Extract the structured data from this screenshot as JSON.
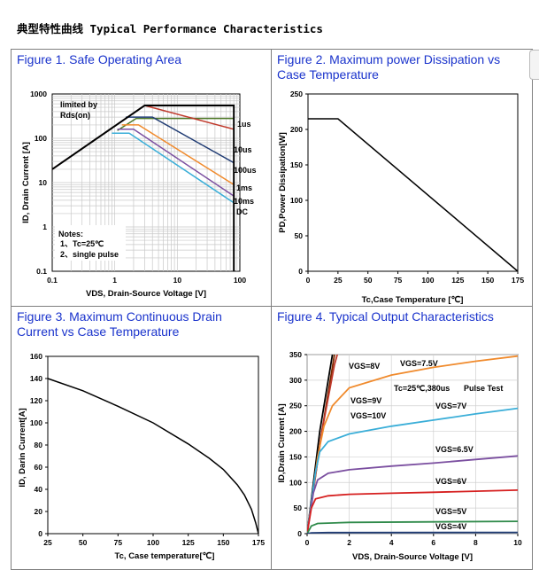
{
  "page": {
    "title": "典型特性曲线 Typical Performance Characteristics"
  },
  "figures": [
    {
      "title": "Figure 1. Safe Operating Area"
    },
    {
      "title": "Figure 2. Maximum power Dissipation vs Case Temperature"
    },
    {
      "title": "Figure 3. Maximum Continuous Drain Current vs Case Temperature"
    },
    {
      "title": "Figure 4. Typical Output Characteristics"
    }
  ],
  "chart_data": [
    {
      "type": "line",
      "title": "Figure 1. Safe Operating Area",
      "xlabel": "VDS, Drain-Source Voltage [V]",
      "ylabel": "ID, Drain Current [A]",
      "xlim": [
        0.1,
        100
      ],
      "ylim": [
        0.1,
        1000
      ],
      "x_scale": "log",
      "y_scale": "log",
      "xticks": [
        "0.1",
        "1",
        "10",
        "100"
      ],
      "yticks": [
        "0.1",
        "1",
        "10",
        "100",
        "1000"
      ],
      "annotations": [
        "limited by",
        "Rds(on)",
        "Notes:",
        "1、Tc=25℃",
        "2、single pulse"
      ],
      "series": [
        {
          "name": "1us",
          "color": "#4f7a28",
          "x": [
            1.1,
            2.2,
            2.3,
            80
          ],
          "y": [
            150,
            280,
            280,
            280
          ]
        },
        {
          "name": "10us",
          "color": "#c0392b",
          "x": [
            0.1,
            3,
            80
          ],
          "y": [
            20,
            550,
            160
          ]
        },
        {
          "name": "100us",
          "color": "#1f3b73",
          "x": [
            1.5,
            4,
            80
          ],
          "y": [
            300,
            300,
            28
          ]
        },
        {
          "name": "1ms",
          "color": "#f08a2c",
          "x": [
            1.3,
            2.4,
            80
          ],
          "y": [
            200,
            200,
            9
          ]
        },
        {
          "name": "10ms",
          "color": "#7b4fa0",
          "x": [
            1.1,
            2.0,
            80
          ],
          "y": [
            160,
            160,
            5
          ]
        },
        {
          "name": "DC",
          "color": "#3aaed8",
          "x": [
            0.9,
            1.7,
            80
          ],
          "y": [
            130,
            130,
            3.5
          ]
        },
        {
          "name": "SOA boundary",
          "color": "#000000",
          "x": [
            0.1,
            3,
            3,
            80,
            80
          ],
          "y": [
            20,
            550,
            550,
            550,
            0.1
          ]
        }
      ]
    },
    {
      "type": "line",
      "title": "Figure 2. Maximum power Dissipation vs Case Temperature",
      "xlabel": "Tc,Case Temperature [℃]",
      "ylabel": "PD,Power Dissipation[W]",
      "xlim": [
        0,
        175
      ],
      "ylim": [
        0,
        250
      ],
      "xticks": [
        "0",
        "25",
        "50",
        "75",
        "100",
        "125",
        "150",
        "175"
      ],
      "yticks": [
        "0",
        "50",
        "100",
        "150",
        "200",
        "250"
      ],
      "series": [
        {
          "name": "PD",
          "x": [
            0,
            25,
            175
          ],
          "y": [
            215,
            215,
            0
          ]
        }
      ]
    },
    {
      "type": "line",
      "title": "Figure 3. Maximum Continuous Drain Current vs Case Temperature",
      "xlabel": "Tc, Case temperature[℃]",
      "ylabel": "ID, Darin Current[A]",
      "xlim": [
        25,
        175
      ],
      "ylim": [
        0,
        160
      ],
      "xticks": [
        "25",
        "50",
        "75",
        "100",
        "125",
        "150",
        "175"
      ],
      "yticks": [
        "0",
        "20",
        "40",
        "60",
        "80",
        "100",
        "120",
        "140",
        "160"
      ],
      "series": [
        {
          "name": "ID",
          "x": [
            25,
            50,
            75,
            100,
            125,
            140,
            150,
            160,
            165,
            170,
            173,
            175
          ],
          "y": [
            140,
            129,
            115,
            100,
            81,
            68,
            58,
            44,
            35,
            22,
            10,
            0
          ]
        }
      ]
    },
    {
      "type": "line",
      "title": "Figure 4. Typical Output Characteristics",
      "xlabel": "VDS, Drain-Source Voltage [V]",
      "ylabel": "ID,Drain Current [A]",
      "xlim": [
        0,
        10
      ],
      "ylim": [
        0,
        350
      ],
      "xticks": [
        "0",
        "2",
        "4",
        "6",
        "8",
        "10"
      ],
      "yticks": [
        "0",
        "50",
        "100",
        "150",
        "200",
        "250",
        "300",
        "350"
      ],
      "annotations": [
        "Tc=25℃,380us",
        "Pulse Test"
      ],
      "series": [
        {
          "name": "VGS=10V",
          "color": "#000000",
          "x": [
            0,
            0.6,
            1.2
          ],
          "y": [
            0,
            200,
            350
          ]
        },
        {
          "name": "VGS=9V",
          "color": "#7a2a00",
          "x": [
            0,
            0.7,
            1.3
          ],
          "y": [
            0,
            200,
            350
          ]
        },
        {
          "name": "VGS=8V",
          "color": "#c0392b",
          "x": [
            0,
            0.7,
            1.3,
            1.5,
            2.2
          ],
          "y": [
            0,
            200,
            330,
            360,
            400
          ]
        },
        {
          "name": "VGS=7.5V",
          "color": "#f08a2c",
          "x": [
            0,
            0.5,
            0.8,
            1.2,
            2,
            4,
            6,
            8,
            10
          ],
          "y": [
            0,
            150,
            210,
            250,
            285,
            310,
            325,
            337,
            347
          ]
        },
        {
          "name": "VGS=7V",
          "color": "#3aaed8",
          "x": [
            0,
            0.4,
            0.6,
            1,
            2,
            4,
            6,
            8,
            10
          ],
          "y": [
            0,
            120,
            160,
            180,
            195,
            210,
            222,
            234,
            245
          ]
        },
        {
          "name": "VGS=6.5V",
          "color": "#7b4fa0",
          "x": [
            0,
            0.3,
            0.5,
            1,
            2,
            4,
            6,
            8,
            10
          ],
          "y": [
            0,
            80,
            105,
            118,
            125,
            132,
            138,
            145,
            152
          ]
        },
        {
          "name": "VGS=6V",
          "color": "#d62020",
          "x": [
            0,
            0.2,
            0.4,
            1,
            2,
            4,
            6,
            8,
            10
          ],
          "y": [
            0,
            50,
            68,
            74,
            77,
            79,
            81,
            83,
            85
          ]
        },
        {
          "name": "VGS=5V",
          "color": "#2f8a4a",
          "x": [
            0,
            0.2,
            0.5,
            2,
            6,
            10
          ],
          "y": [
            0,
            15,
            20,
            22,
            23,
            24
          ]
        },
        {
          "name": "VGS=4V",
          "color": "#1f3b73",
          "x": [
            0,
            0.2,
            1,
            10
          ],
          "y": [
            0,
            1.5,
            2,
            2.5
          ]
        }
      ]
    }
  ]
}
